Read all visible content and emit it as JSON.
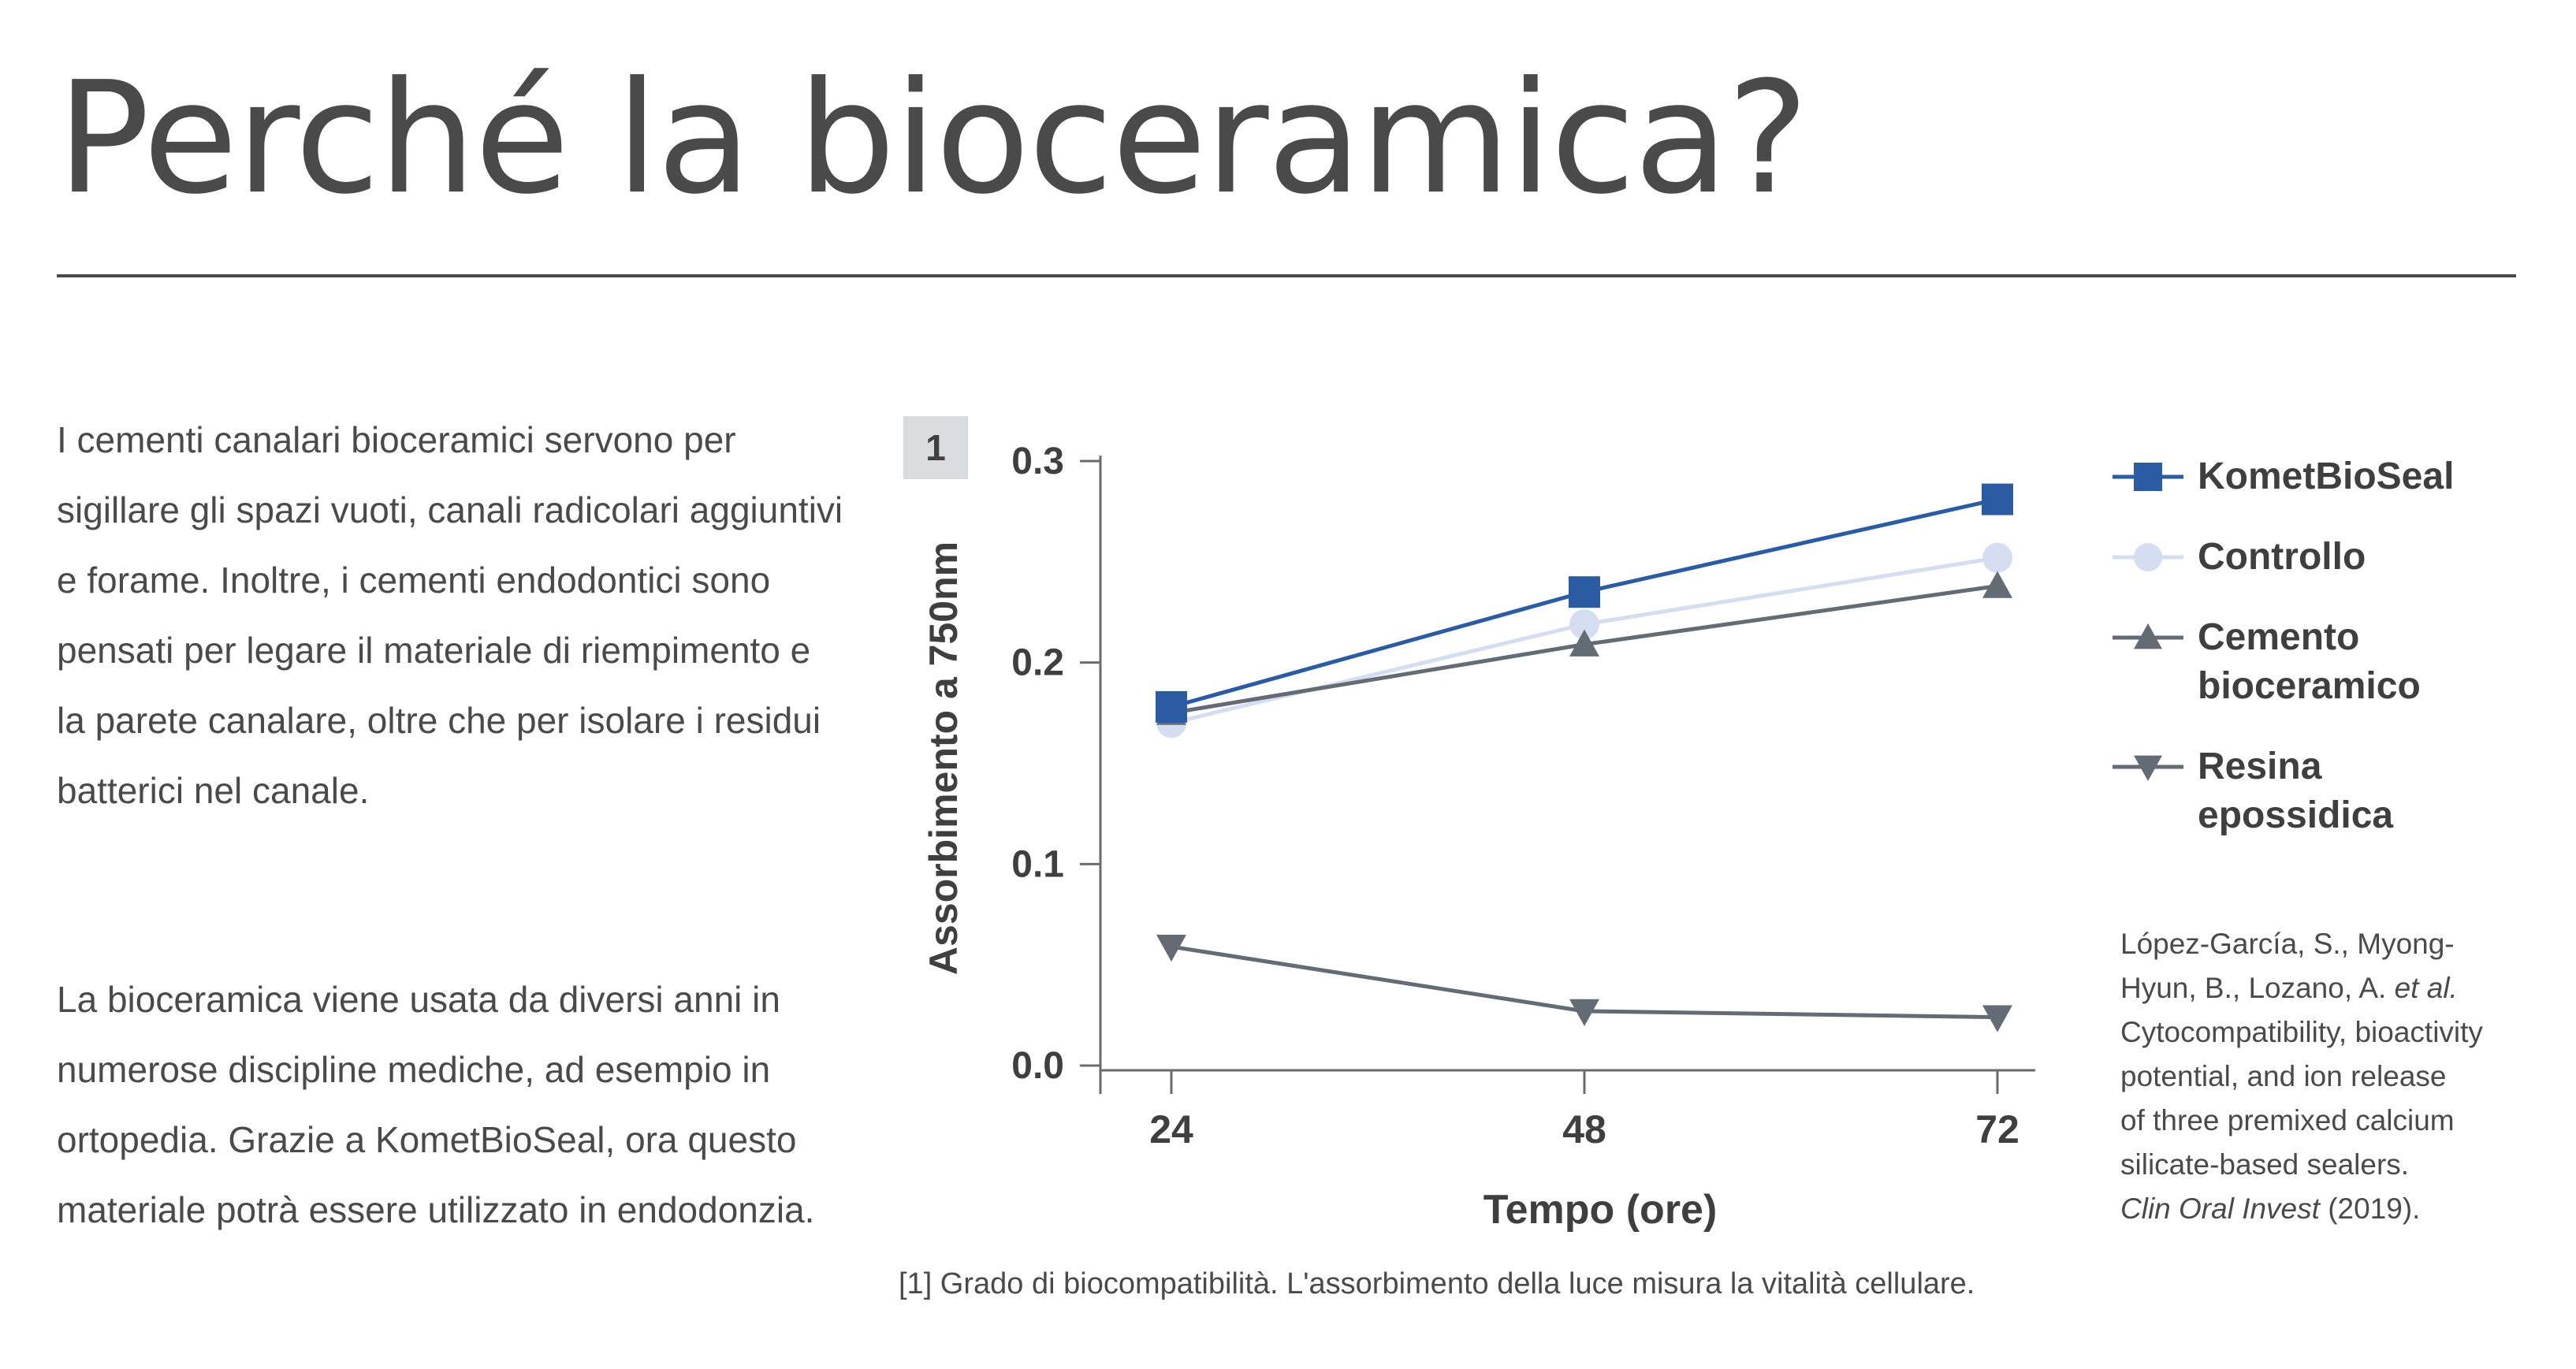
{
  "page": {
    "title": "Perché la bioceramica?",
    "paragraph_1": "I cementi canalari bioceramici servono per sigillare gli spazi vuoti, canali radicolari aggiuntivi e forame. Inoltre, i cementi endodontici sono pensati per legare il materiale di riempimento e la parete canalare, oltre che per isolare i residui batterici nel canale.",
    "paragraph_2": "La bioceramica viene usata da diversi anni in numerose discipline mediche, ad esempio in ortopedia. Grazie a KometBioSeal, ora questo materiale potrà essere utilizzato in endodonzia.",
    "figure_number": "1",
    "caption": "[1] Grado di biocompatibilità. L'assorbimento della luce misura la vitalità cellulare.",
    "reference": {
      "line_1": "López-García, S., Myong-",
      "line_2_a": "Hyun, B., Lozano, A. ",
      "line_2_b": "et al.",
      "line_3": "Cytocompatibility, bioactivity",
      "line_4": "potential, and ion release",
      "line_5": "of three premixed calcium",
      "line_6": "silicate-based sealers.",
      "line_7_a": "Clin Oral Invest",
      "line_7_b": " (2019)."
    }
  },
  "chart_data": {
    "type": "line",
    "x": [
      24,
      48,
      72
    ],
    "x_tick_labels": [
      "24",
      "48",
      "72"
    ],
    "y_tick_labels": [
      "0.3",
      "0.2",
      "0.1",
      "0.0"
    ],
    "xlabel": "Tempo (ore)",
    "ylabel": "Assorbimento a 750nm",
    "ylim": [
      0,
      0.3
    ],
    "grid": false,
    "legend_position": "right",
    "series": [
      {
        "name": "KometBioSeal",
        "values": [
          0.178,
          0.235,
          0.281
        ],
        "color": "#2a5ba3",
        "marker": "square"
      },
      {
        "name": "Controllo",
        "values": [
          0.17,
          0.219,
          0.252
        ],
        "color": "#d4def0",
        "marker": "circle"
      },
      {
        "name": "Cemento bioceramico",
        "values": [
          0.175,
          0.209,
          0.238
        ],
        "color": "#636b74",
        "marker": "triangle-up"
      },
      {
        "name": "Resina epossidica",
        "values": [
          0.059,
          0.027,
          0.024
        ],
        "color": "#636b74",
        "marker": "triangle-down"
      }
    ],
    "legend_labels": [
      [
        "KometBioSeal"
      ],
      [
        "Controllo"
      ],
      [
        "Cemento",
        "bioceramico"
      ],
      [
        "Resina",
        "epossidica"
      ]
    ]
  }
}
